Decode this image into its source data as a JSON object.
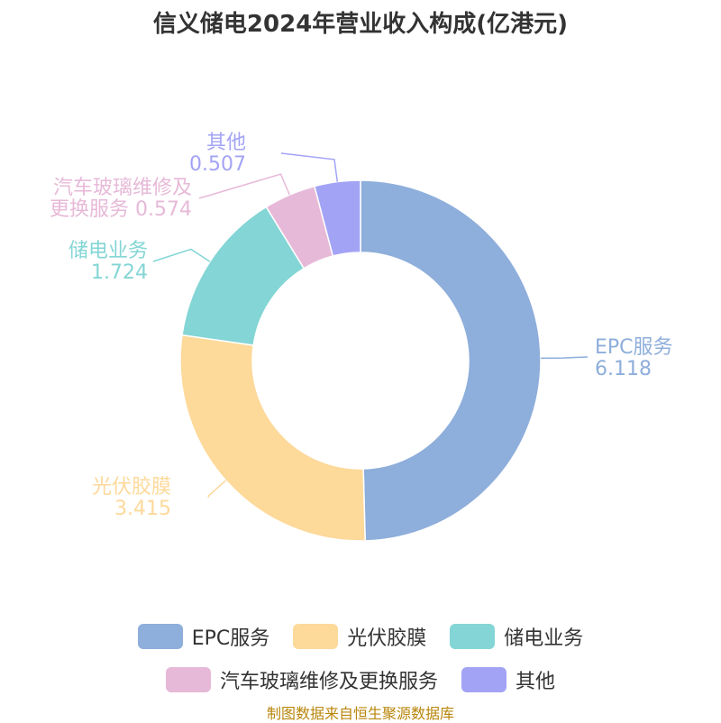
{
  "title": "信义储电2024年营业收入构成(亿港元)",
  "source": "制图数据来自恒生聚源数据库",
  "chart_data": {
    "type": "pie",
    "donut": true,
    "title": "信义储电2024年营业收入构成(亿港元)",
    "series": [
      {
        "name": "EPC服务",
        "value": 6.118,
        "color": "#8eaedb",
        "label_lines": [
          "EPC服务",
          "6.118"
        ]
      },
      {
        "name": "光伏胶膜",
        "value": 3.415,
        "color": "#fdd99a",
        "label_lines": [
          "光伏胶膜",
          "3.415"
        ]
      },
      {
        "name": "储电业务",
        "value": 1.724,
        "color": "#84d5d5",
        "label_lines": [
          "储电业务",
          "1.724"
        ]
      },
      {
        "name": "汽车玻璃维修及更换服务",
        "value": 0.574,
        "color": "#e7b9d8",
        "label_lines": [
          "汽车玻璃维修及",
          "更换服务 0.574"
        ]
      },
      {
        "name": "其他",
        "value": 0.507,
        "color": "#a3a3f5",
        "label_lines": [
          "其他",
          "0.507"
        ]
      }
    ],
    "legend_position": "bottom"
  }
}
